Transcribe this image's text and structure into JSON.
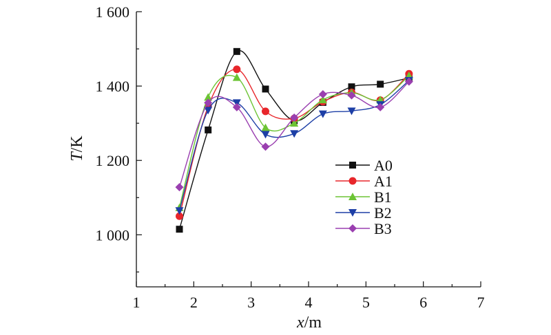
{
  "chart_data": {
    "type": "line",
    "xlabel_var": "x",
    "xlabel_unit": "/m",
    "ylabel_var": "T",
    "ylabel_unit": "/K",
    "xlim": [
      1,
      7
    ],
    "ylim": [
      860,
      1600
    ],
    "x_ticks": [
      1,
      2,
      3,
      4,
      5,
      6,
      7
    ],
    "x_tick_labels": [
      "1",
      "2",
      "3",
      "4",
      "5",
      "6",
      "7"
    ],
    "y_ticks": [
      1000,
      1200,
      1400,
      1600
    ],
    "y_tick_labels": [
      "1 000",
      "1 200",
      "1 400",
      "1 600"
    ],
    "grid": false,
    "legend_position": "center-right",
    "x": [
      1.75,
      2.25,
      2.75,
      3.25,
      3.75,
      4.25,
      4.75,
      5.25,
      5.75
    ],
    "series": [
      {
        "name": "A0",
        "color": "#111111",
        "marker": "square",
        "values": [
          1015,
          1282,
          1493,
          1392,
          1307,
          1356,
          1398,
          1405,
          1422
        ]
      },
      {
        "name": "A1",
        "color": "#e8262b",
        "marker": "circle",
        "values": [
          1050,
          1345,
          1445,
          1332,
          1313,
          1358,
          1383,
          1362,
          1433
        ]
      },
      {
        "name": "B1",
        "color": "#6cc434",
        "marker": "triangle-up",
        "values": [
          1073,
          1370,
          1423,
          1288,
          1300,
          1363,
          1382,
          1363,
          1428
        ]
      },
      {
        "name": "B2",
        "color": "#1d3fa6",
        "marker": "triangle-down",
        "values": [
          1065,
          1335,
          1355,
          1270,
          1272,
          1325,
          1333,
          1350,
          1415
        ]
      },
      {
        "name": "B3",
        "color": "#9a3fb0",
        "marker": "diamond",
        "values": [
          1128,
          1355,
          1343,
          1237,
          1315,
          1378,
          1375,
          1343,
          1412
        ]
      }
    ]
  }
}
